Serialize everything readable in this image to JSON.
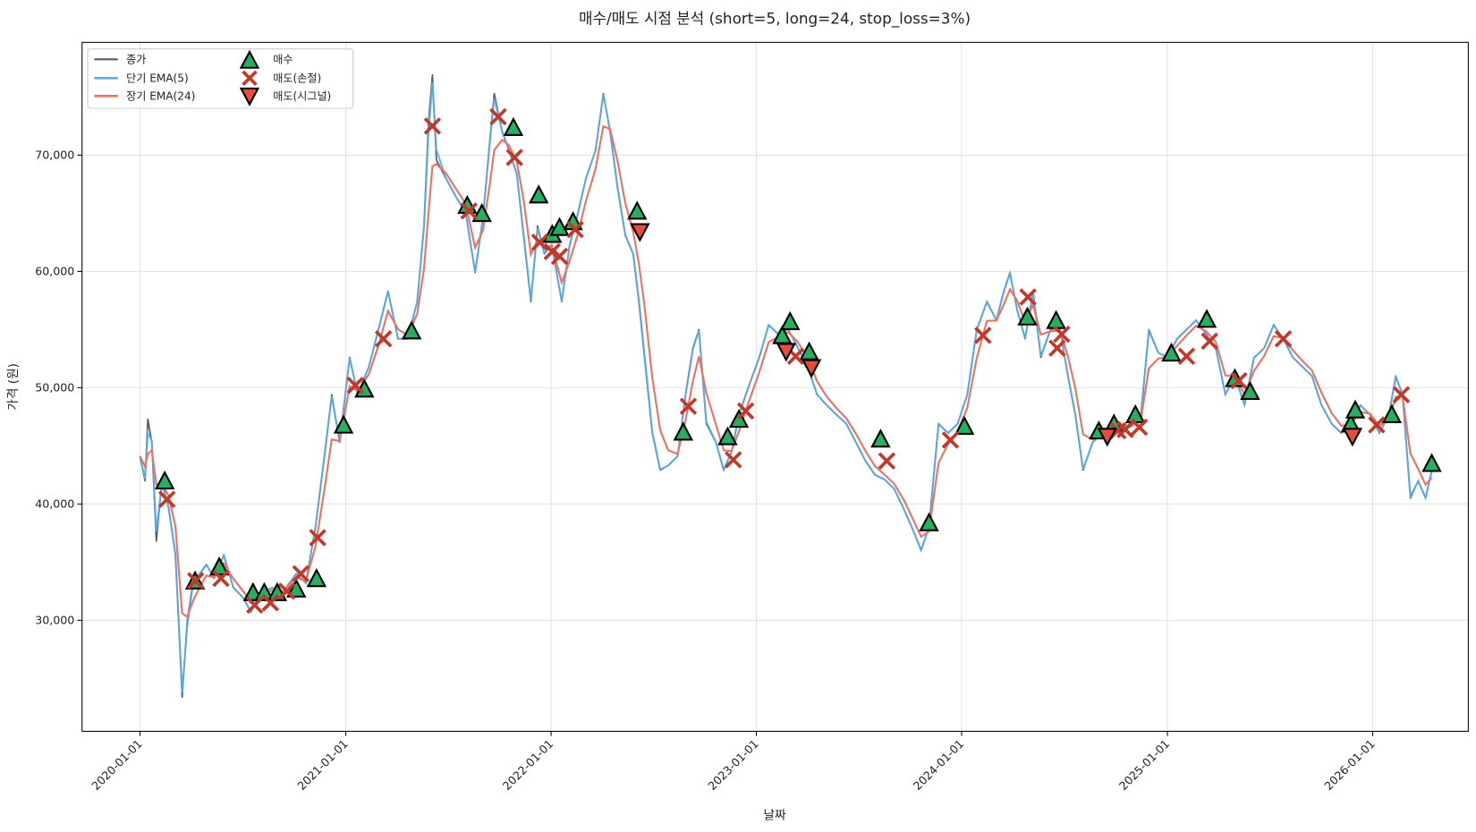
{
  "chart_data": {
    "type": "line",
    "title": "매수/매도 시점 분석 (short=5, long=24, stop_loss=3%)",
    "xlabel": "날짜",
    "ylabel": "가격 (원)",
    "xlim": [
      "2019-09-20",
      "2026-06-20"
    ],
    "ylim": [
      20450,
      79700
    ],
    "grid": true,
    "legend_placement": "top-left",
    "x_ticks": [
      "2020-01-01",
      "2021-01-01",
      "2022-01-01",
      "2023-01-01",
      "2024-01-01",
      "2025-01-01",
      "2026-01-01"
    ],
    "y_ticks": [
      30000,
      40000,
      50000,
      60000,
      70000
    ],
    "y_tick_labels": [
      "30,000",
      "40,000",
      "50,000",
      "60,000",
      "70,000"
    ],
    "params": {
      "short": 5,
      "long": 24,
      "stop_loss_pct": 3
    },
    "legend": {
      "close": "종가",
      "ema_short": "단기 EMA(5)",
      "ema_long": "장기 EMA(24)",
      "buy": "매수",
      "sell_stop": "매도(손절)",
      "sell_signal": "매도(시그널)"
    },
    "colors": {
      "close": "#4f5b6d",
      "ema_short": "#5dade2",
      "ema_long": "#ec7063",
      "buy": "#27ae60",
      "sell_stop": "#c0392b",
      "sell_signal": "#e74c3c"
    },
    "close": {
      "dates": [
        "2020-01-01",
        "2020-01-10",
        "2020-01-15",
        "2020-01-22",
        "2020-01-30",
        "2020-02-09",
        "2020-02-21",
        "2020-03-04",
        "2020-03-16",
        "2020-03-25",
        "2020-04-04",
        "2020-04-16",
        "2020-04-28",
        "2020-05-12",
        "2020-05-29",
        "2020-06-15",
        "2020-07-03",
        "2020-07-16",
        "2020-08-02",
        "2020-08-23",
        "2020-09-09",
        "2020-10-05",
        "2020-10-22",
        "2020-11-08",
        "2020-11-25",
        "2020-12-07",
        "2020-12-21",
        "2021-01-08",
        "2021-01-22",
        "2021-02-11",
        "2021-02-28",
        "2021-03-17",
        "2021-04-04",
        "2021-04-21",
        "2021-05-08",
        "2021-05-20",
        "2021-05-28",
        "2021-06-04",
        "2021-06-11",
        "2021-06-28",
        "2021-07-16",
        "2021-08-02",
        "2021-08-19",
        "2021-09-02",
        "2021-09-14",
        "2021-09-22",
        "2021-10-06",
        "2021-10-18",
        "2021-11-01",
        "2021-11-13",
        "2021-11-26",
        "2021-12-08",
        "2021-12-20",
        "2022-01-02",
        "2022-01-20",
        "2022-02-03",
        "2022-02-16",
        "2022-03-04",
        "2022-03-21",
        "2022-04-04",
        "2022-04-16",
        "2022-04-29",
        "2022-05-13",
        "2022-05-27",
        "2022-06-06",
        "2022-06-16",
        "2022-06-30",
        "2022-07-14",
        "2022-07-28",
        "2022-08-14",
        "2022-08-28",
        "2022-09-10",
        "2022-09-21",
        "2022-10-04",
        "2022-10-21",
        "2022-11-04",
        "2022-11-18",
        "2022-12-01",
        "2022-12-19",
        "2023-01-06",
        "2023-01-23",
        "2023-02-09",
        "2023-02-27",
        "2023-03-16",
        "2023-04-02",
        "2023-04-19",
        "2023-05-06",
        "2023-05-23",
        "2023-06-10",
        "2023-06-27",
        "2023-07-14",
        "2023-07-31",
        "2023-08-17",
        "2023-09-03",
        "2023-09-20",
        "2023-10-08",
        "2023-10-21",
        "2023-11-04",
        "2023-11-21",
        "2023-12-08",
        "2023-12-25",
        "2024-01-11",
        "2024-01-28",
        "2024-02-15",
        "2024-03-03",
        "2024-03-16",
        "2024-03-27",
        "2024-04-09",
        "2024-04-23",
        "2024-05-07",
        "2024-05-21",
        "2024-06-07",
        "2024-06-24",
        "2024-07-08",
        "2024-07-21",
        "2024-08-04",
        "2024-08-21",
        "2024-09-07",
        "2024-09-25",
        "2024-10-12",
        "2024-10-29",
        "2024-11-15",
        "2024-11-29",
        "2024-12-16",
        "2025-01-01",
        "2025-01-18",
        "2025-02-04",
        "2025-02-21",
        "2025-03-11",
        "2025-03-28",
        "2025-04-14",
        "2025-05-01",
        "2025-05-18",
        "2025-06-04",
        "2025-06-22",
        "2025-07-09",
        "2025-07-26",
        "2025-08-12",
        "2025-08-29",
        "2025-09-15",
        "2025-10-02",
        "2025-10-20",
        "2025-11-06",
        "2025-11-23",
        "2025-12-10",
        "2025-12-27",
        "2026-01-13",
        "2026-01-30",
        "2026-02-11",
        "2026-02-23",
        "2026-03-09",
        "2026-03-23",
        "2026-04-05",
        "2026-04-16"
      ],
      "values": [
        44100,
        42000,
        47300,
        45300,
        36800,
        42000,
        39600,
        35600,
        23400,
        29900,
        33200,
        34000,
        34800,
        33600,
        35600,
        32800,
        31900,
        30700,
        32300,
        32800,
        32300,
        34000,
        33200,
        38000,
        44500,
        49400,
        45300,
        52600,
        49400,
        51800,
        55000,
        58300,
        54200,
        54200,
        57400,
        63900,
        72800,
        76900,
        69600,
        68000,
        66400,
        65100,
        59900,
        64700,
        71200,
        75300,
        72000,
        70400,
        68400,
        63100,
        57400,
        63900,
        61500,
        62300,
        57400,
        62300,
        64700,
        68000,
        70400,
        75300,
        72000,
        67200,
        63100,
        61500,
        57400,
        52600,
        46100,
        42900,
        43300,
        44100,
        49400,
        53400,
        55000,
        46900,
        45300,
        42900,
        44500,
        47700,
        50200,
        52600,
        55400,
        54600,
        55000,
        53400,
        51800,
        49400,
        48500,
        47700,
        46900,
        45300,
        43700,
        42500,
        42100,
        41300,
        39600,
        37600,
        36000,
        38000,
        46900,
        46100,
        46900,
        49400,
        55000,
        57400,
        55800,
        58300,
        59900,
        56600,
        54200,
        58300,
        52600,
        55000,
        55000,
        51000,
        47700,
        42900,
        45300,
        46100,
        46100,
        46500,
        46900,
        47700,
        55000,
        53000,
        52600,
        54200,
        55000,
        55800,
        54600,
        53400,
        49400,
        51000,
        48500,
        52600,
        53400,
        55400,
        54200,
        52600,
        51800,
        51000,
        48500,
        46900,
        46100,
        46900,
        48500,
        47700,
        46100,
        47700,
        51000,
        49400,
        40500,
        42000,
        40500,
        42900
      ]
    },
    "buy_signals": [
      {
        "date": "2020-02-14",
        "price": 41900
      },
      {
        "date": "2020-04-08",
        "price": 33300
      },
      {
        "date": "2020-05-21",
        "price": 34500
      },
      {
        "date": "2020-07-20",
        "price": 32300
      },
      {
        "date": "2020-08-09",
        "price": 32300
      },
      {
        "date": "2020-09-01",
        "price": 32300
      },
      {
        "date": "2020-10-05",
        "price": 32600
      },
      {
        "date": "2020-11-10",
        "price": 33500
      },
      {
        "date": "2020-12-28",
        "price": 46700
      },
      {
        "date": "2021-02-03",
        "price": 49800
      },
      {
        "date": "2021-04-28",
        "price": 54800
      },
      {
        "date": "2021-08-05",
        "price": 65600
      },
      {
        "date": "2021-08-31",
        "price": 64900
      },
      {
        "date": "2021-10-26",
        "price": 72300
      },
      {
        "date": "2021-12-10",
        "price": 66500
      },
      {
        "date": "2022-01-03",
        "price": 63100
      },
      {
        "date": "2022-01-16",
        "price": 63700
      },
      {
        "date": "2022-02-09",
        "price": 64200
      },
      {
        "date": "2022-06-03",
        "price": 65100
      },
      {
        "date": "2022-08-24",
        "price": 46100
      },
      {
        "date": "2022-11-11",
        "price": 45700
      },
      {
        "date": "2022-12-01",
        "price": 47200
      },
      {
        "date": "2023-02-16",
        "price": 54400
      },
      {
        "date": "2023-03-02",
        "price": 55600
      },
      {
        "date": "2023-04-05",
        "price": 53000
      },
      {
        "date": "2023-08-10",
        "price": 45500
      },
      {
        "date": "2023-11-04",
        "price": 38300
      },
      {
        "date": "2024-01-06",
        "price": 46600
      },
      {
        "date": "2024-04-27",
        "price": 56000
      },
      {
        "date": "2024-06-17",
        "price": 55700
      },
      {
        "date": "2024-09-01",
        "price": 46200
      },
      {
        "date": "2024-09-28",
        "price": 46800
      },
      {
        "date": "2024-11-05",
        "price": 47600
      },
      {
        "date": "2025-01-08",
        "price": 52900
      },
      {
        "date": "2025-03-12",
        "price": 55800
      },
      {
        "date": "2025-05-01",
        "price": 50700
      },
      {
        "date": "2025-05-28",
        "price": 49600
      },
      {
        "date": "2025-11-23",
        "price": 46800
      },
      {
        "date": "2025-12-01",
        "price": 48000
      },
      {
        "date": "2026-02-04",
        "price": 47600
      },
      {
        "date": "2026-04-16",
        "price": 43400
      }
    ],
    "sell_stop_loss": [
      {
        "date": "2020-02-18",
        "price": 40400
      },
      {
        "date": "2020-04-09",
        "price": 33400
      },
      {
        "date": "2020-05-24",
        "price": 33600
      },
      {
        "date": "2020-07-23",
        "price": 31300
      },
      {
        "date": "2020-08-20",
        "price": 31500
      },
      {
        "date": "2020-09-18",
        "price": 32500
      },
      {
        "date": "2020-10-13",
        "price": 34000
      },
      {
        "date": "2020-11-12",
        "price": 37100
      },
      {
        "date": "2021-01-18",
        "price": 50200
      },
      {
        "date": "2021-03-09",
        "price": 54200
      },
      {
        "date": "2021-06-04",
        "price": 72500
      },
      {
        "date": "2021-08-08",
        "price": 65200
      },
      {
        "date": "2021-09-29",
        "price": 73300
      },
      {
        "date": "2021-10-28",
        "price": 69800
      },
      {
        "date": "2021-12-12",
        "price": 62500
      },
      {
        "date": "2022-01-03",
        "price": 61700
      },
      {
        "date": "2022-01-16",
        "price": 61300
      },
      {
        "date": "2022-02-13",
        "price": 63600
      },
      {
        "date": "2022-09-02",
        "price": 48400
      },
      {
        "date": "2022-11-21",
        "price": 43800
      },
      {
        "date": "2022-12-13",
        "price": 48000
      },
      {
        "date": "2023-03-12",
        "price": 52700
      },
      {
        "date": "2023-08-21",
        "price": 43700
      },
      {
        "date": "2023-12-12",
        "price": 45500
      },
      {
        "date": "2024-02-08",
        "price": 54500
      },
      {
        "date": "2024-04-28",
        "price": 57800
      },
      {
        "date": "2024-06-19",
        "price": 53400
      },
      {
        "date": "2024-06-27",
        "price": 54600
      },
      {
        "date": "2024-10-05",
        "price": 46300
      },
      {
        "date": "2024-10-18",
        "price": 46400
      },
      {
        "date": "2024-11-12",
        "price": 46600
      },
      {
        "date": "2025-02-04",
        "price": 52700
      },
      {
        "date": "2025-03-17",
        "price": 54000
      },
      {
        "date": "2025-05-08",
        "price": 50600
      },
      {
        "date": "2025-07-26",
        "price": 54200
      },
      {
        "date": "2026-01-08",
        "price": 46800
      },
      {
        "date": "2026-02-21",
        "price": 49400
      }
    ],
    "sell_signals": [
      {
        "date": "2022-06-08",
        "price": 63500
      },
      {
        "date": "2023-02-23",
        "price": 53200
      },
      {
        "date": "2023-04-09",
        "price": 51800
      },
      {
        "date": "2024-09-16",
        "price": 45900
      },
      {
        "date": "2025-11-26",
        "price": 45900
      }
    ]
  }
}
